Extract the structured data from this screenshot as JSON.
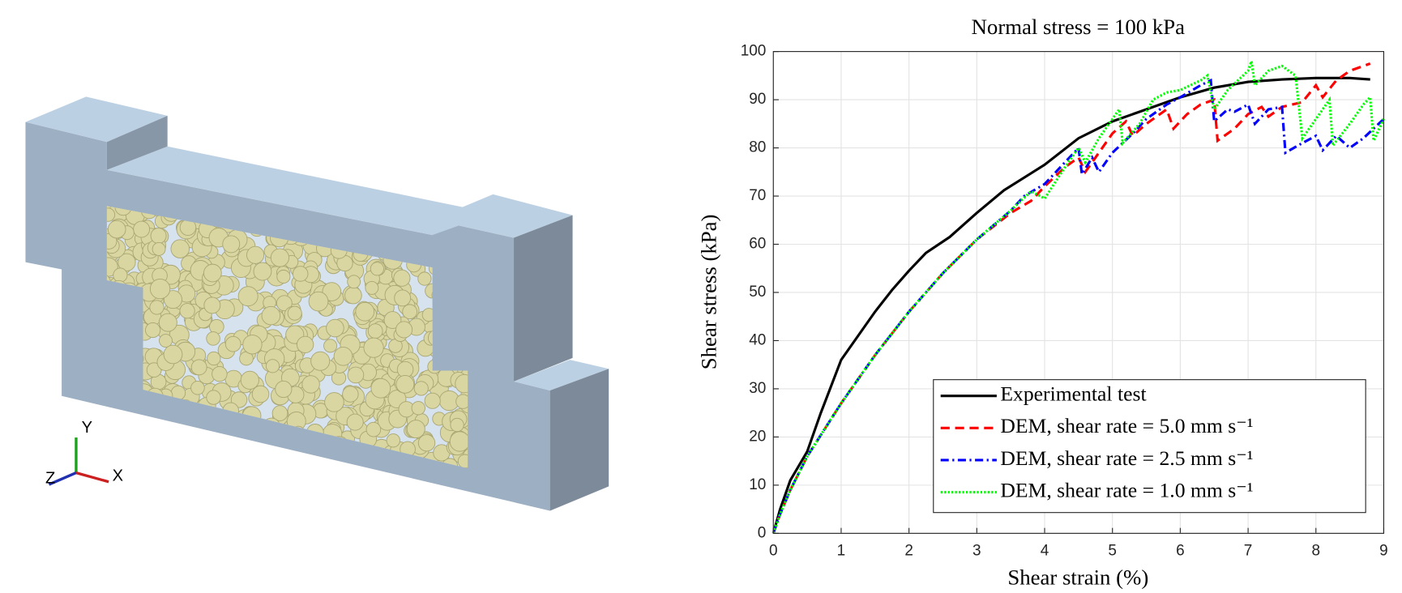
{
  "model_view": {
    "triad": {
      "x": "X",
      "y": "Y",
      "z": "Z"
    }
  },
  "chart_data": {
    "type": "line",
    "title": "Normal stress = 100 kPa",
    "x_label": "Shear strain (%)",
    "y_label": "Shear stress (kPa)",
    "xlim": [
      0,
      9
    ],
    "xticks": [
      0,
      1,
      2,
      3,
      4,
      5,
      6,
      7,
      8,
      9
    ],
    "ylim": [
      0,
      100
    ],
    "yticks": [
      0,
      10,
      20,
      30,
      40,
      50,
      60,
      70,
      80,
      90,
      100
    ],
    "grid": true,
    "legend": "lower right",
    "series": [
      {
        "name": "Experimental test",
        "color": "#000000",
        "dash": "solid",
        "x": [
          0,
          0.1,
          0.25,
          0.5,
          0.7,
          1,
          1.25,
          1.5,
          1.75,
          2,
          2.25,
          2.6,
          3,
          3.4,
          4,
          4.5,
          5,
          5.5,
          6,
          6.5,
          7,
          7.5,
          8,
          8.5,
          8.8
        ],
        "values": [
          0,
          5,
          11,
          17,
          25,
          36,
          41,
          46,
          50.5,
          54.5,
          58.2,
          61.5,
          66.5,
          71.2,
          76.5,
          82,
          85.5,
          88,
          90.5,
          92.5,
          93.7,
          94.2,
          94.5,
          94.5,
          94.2
        ]
      },
      {
        "name": "DEM, shear rate = 5.0 mm s⁻¹",
        "color": "#ff0000",
        "dash": "dashed",
        "x": [
          0,
          0.1,
          0.25,
          0.5,
          1,
          1.5,
          2,
          2.5,
          3,
          3.5,
          3.8,
          4,
          4.3,
          4.5,
          4.6,
          4.8,
          5,
          5.2,
          5.3,
          5.5,
          5.8,
          5.9,
          6.1,
          6.3,
          6.5,
          6.55,
          6.8,
          7,
          7.2,
          7.3,
          7.5,
          7.8,
          8,
          8.1,
          8.3,
          8.5,
          8.7,
          8.8
        ],
        "values": [
          0,
          4,
          9,
          16,
          27,
          37,
          46,
          54,
          61,
          66.5,
          69,
          72,
          76,
          78,
          75,
          79,
          83,
          85.5,
          82.5,
          85,
          88,
          84,
          87,
          89,
          90,
          81.5,
          84,
          87,
          88.5,
          86.5,
          88.5,
          89.5,
          93,
          90.5,
          94,
          96,
          97,
          97.5
        ]
      },
      {
        "name": "DEM, shear rate = 2.5 mm s⁻¹",
        "color": "#0000ff",
        "dash": "dashdot",
        "x": [
          0,
          0.1,
          0.25,
          0.5,
          1,
          1.5,
          2,
          2.5,
          3,
          3.5,
          3.7,
          4,
          4.3,
          4.5,
          4.55,
          4.7,
          4.8,
          5,
          5.3,
          5.5,
          5.8,
          6,
          6.3,
          6.45,
          6.5,
          6.7,
          6.8,
          7,
          7.1,
          7.3,
          7.5,
          7.55,
          7.8,
          8,
          8.1,
          8.3,
          8.5,
          8.7,
          9
        ],
        "values": [
          0,
          4,
          9,
          16,
          27,
          37,
          46,
          54,
          61,
          67,
          70,
          72.5,
          77,
          80,
          74.5,
          78,
          75,
          79,
          83,
          86,
          89,
          90.5,
          93,
          94,
          85.5,
          88,
          87.5,
          89,
          85,
          88,
          88.5,
          79,
          81,
          82.5,
          79.5,
          82.5,
          80,
          82,
          86
        ]
      },
      {
        "name": "DEM, shear rate = 1.0 mm s⁻¹",
        "color": "#00ff00",
        "dash": "dotted",
        "x": [
          0,
          0.1,
          0.25,
          0.5,
          1,
          1.5,
          2,
          2.5,
          3,
          3.5,
          3.8,
          4,
          4.3,
          4.5,
          4.6,
          4.8,
          5,
          5.1,
          5.15,
          5.4,
          5.6,
          5.8,
          6,
          6.3,
          6.4,
          6.5,
          6.7,
          7,
          7.05,
          7.1,
          7.3,
          7.5,
          7.7,
          7.8,
          8,
          8.2,
          8.25,
          8.5,
          8.7,
          8.8,
          8.85,
          9
        ],
        "values": [
          0,
          4,
          9,
          16,
          27,
          37,
          46,
          54,
          61,
          67,
          71,
          69.5,
          76,
          80,
          77,
          82,
          86,
          88,
          81,
          85,
          90,
          91.5,
          92,
          94,
          95,
          88,
          92,
          96,
          98,
          93,
          96,
          97,
          95,
          82,
          86,
          90,
          80.5,
          85,
          89,
          90.5,
          81.5,
          86
        ]
      }
    ]
  }
}
